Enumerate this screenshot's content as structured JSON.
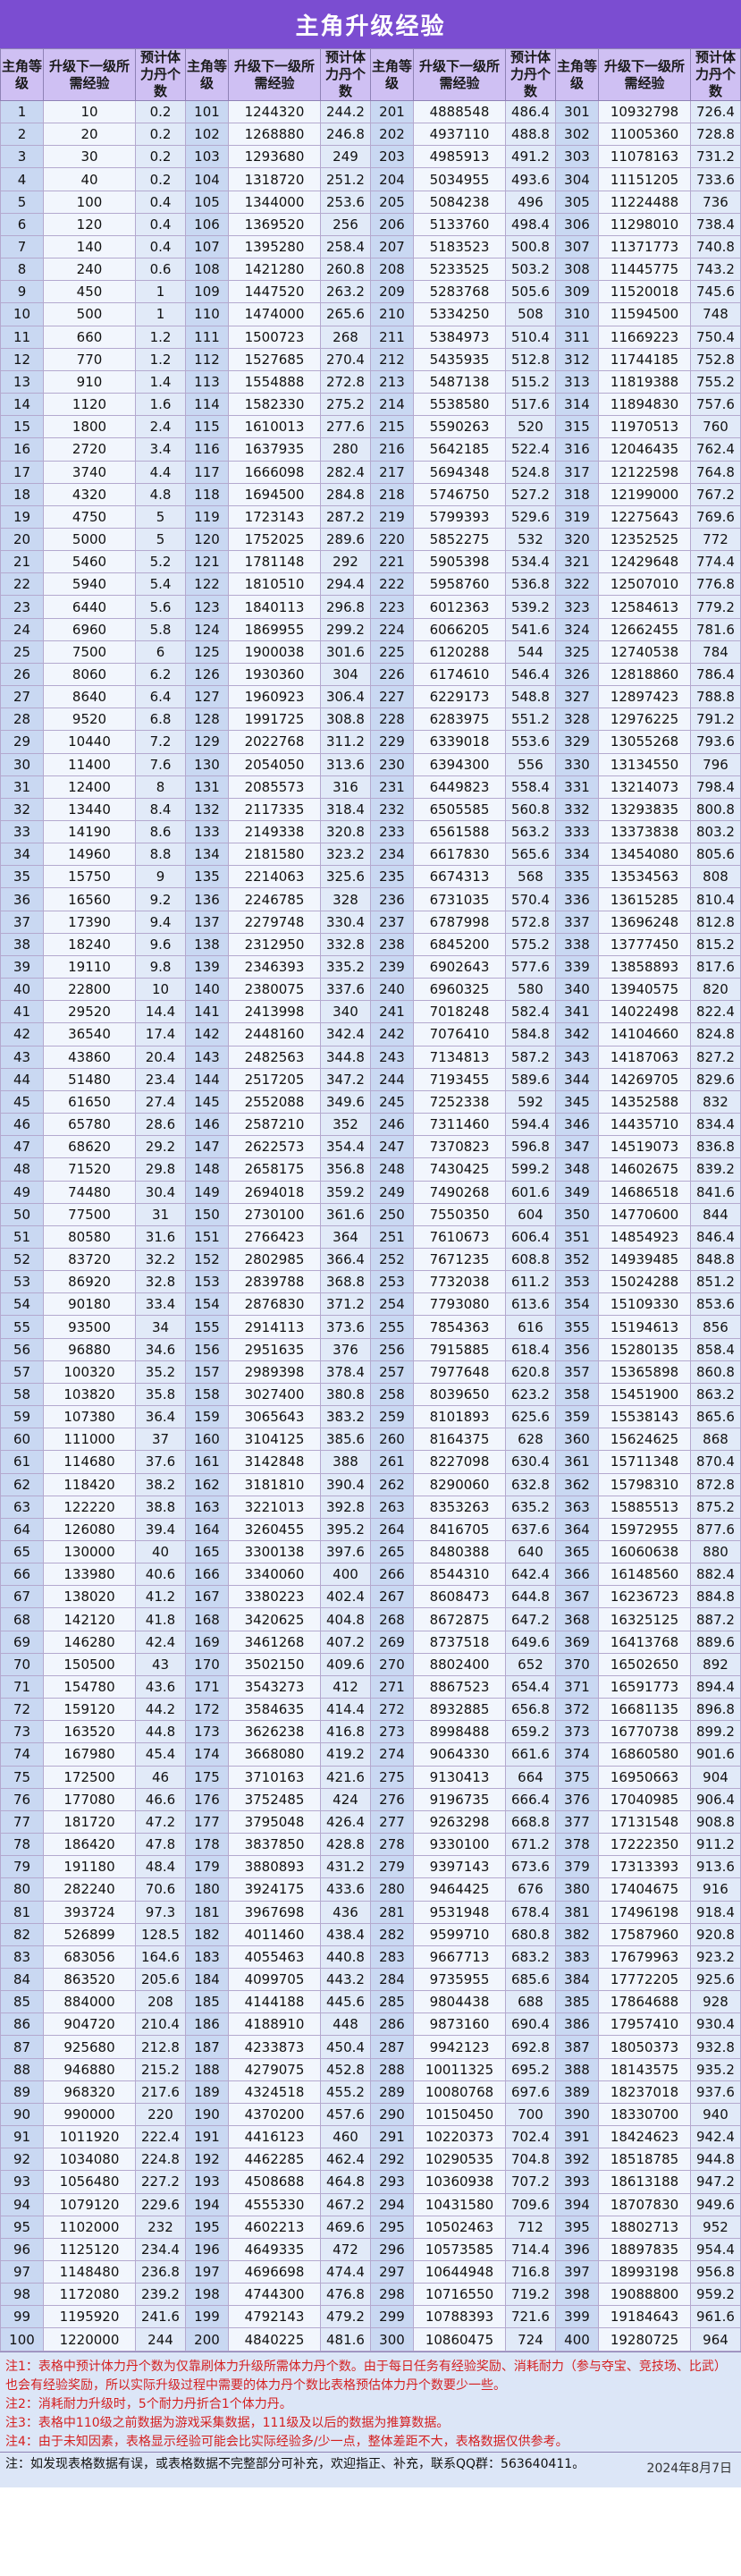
{
  "title": "主角升级经验",
  "header": {
    "level": "主角等级",
    "exp": "升级下一级所需经验",
    "stamina": "预计体力丹个数"
  },
  "groups": [
    {
      "start": 1,
      "exp": [
        "10",
        "20",
        "30",
        "40",
        "100",
        "120",
        "140",
        "240",
        "450",
        "500",
        "660",
        "770",
        "910",
        "1120",
        "1800",
        "2720",
        "3740",
        "4320",
        "4750",
        "5000",
        "5460",
        "5940",
        "6440",
        "6960",
        "7500",
        "8060",
        "8640",
        "9520",
        "10440",
        "11400",
        "12400",
        "13440",
        "14190",
        "14960",
        "15750",
        "16560",
        "17390",
        "18240",
        "19110",
        "22800",
        "29520",
        "36540",
        "43860",
        "51480",
        "61650",
        "65780",
        "68620",
        "71520",
        "74480",
        "77500",
        "80580",
        "83720",
        "86920",
        "90180",
        "93500",
        "96880",
        "100320",
        "103820",
        "107380",
        "111000",
        "114680",
        "118420",
        "122220",
        "126080",
        "130000",
        "133980",
        "138020",
        "142120",
        "146280",
        "150500",
        "154780",
        "159120",
        "163520",
        "167980",
        "172500",
        "177080",
        "181720",
        "186420",
        "191180",
        "282240",
        "393724",
        "526899",
        "683056",
        "863520",
        "884000",
        "904720",
        "925680",
        "946880",
        "968320",
        "990000",
        "1011920",
        "1034080",
        "1056480",
        "1079120",
        "1102000",
        "1125120",
        "1148480",
        "1172080",
        "1195920",
        "1220000"
      ],
      "stamina": [
        "0.2",
        "0.2",
        "0.2",
        "0.2",
        "0.4",
        "0.4",
        "0.4",
        "0.6",
        "1",
        "1",
        "1.2",
        "1.2",
        "1.4",
        "1.6",
        "2.4",
        "3.4",
        "4.4",
        "4.8",
        "5",
        "5",
        "5.2",
        "5.4",
        "5.6",
        "5.8",
        "6",
        "6.2",
        "6.4",
        "6.8",
        "7.2",
        "7.6",
        "8",
        "8.4",
        "8.6",
        "8.8",
        "9",
        "9.2",
        "9.4",
        "9.6",
        "9.8",
        "10",
        "14.4",
        "17.4",
        "20.4",
        "23.4",
        "27.4",
        "28.6",
        "29.2",
        "29.8",
        "30.4",
        "31",
        "31.6",
        "32.2",
        "32.8",
        "33.4",
        "34",
        "34.6",
        "35.2",
        "35.8",
        "36.4",
        "37",
        "37.6",
        "38.2",
        "38.8",
        "39.4",
        "40",
        "40.6",
        "41.2",
        "41.8",
        "42.4",
        "43",
        "43.6",
        "44.2",
        "44.8",
        "45.4",
        "46",
        "46.6",
        "47.2",
        "47.8",
        "48.4",
        "70.6",
        "97.3",
        "128.5",
        "164.6",
        "205.6",
        "208",
        "210.4",
        "212.8",
        "215.2",
        "217.6",
        "220",
        "222.4",
        "224.8",
        "227.2",
        "229.6",
        "232",
        "234.4",
        "236.8",
        "239.2",
        "241.6",
        "244"
      ]
    },
    {
      "start": 101,
      "exp": [
        "1244320",
        "1268880",
        "1293680",
        "1318720",
        "1344000",
        "1369520",
        "1395280",
        "1421280",
        "1447520",
        "1474000",
        "1500723",
        "1527685",
        "1554888",
        "1582330",
        "1610013",
        "1637935",
        "1666098",
        "1694500",
        "1723143",
        "1752025",
        "1781148",
        "1810510",
        "1840113",
        "1869955",
        "1900038",
        "1930360",
        "1960923",
        "1991725",
        "2022768",
        "2054050",
        "2085573",
        "2117335",
        "2149338",
        "2181580",
        "2214063",
        "2246785",
        "2279748",
        "2312950",
        "2346393",
        "2380075",
        "2413998",
        "2448160",
        "2482563",
        "2517205",
        "2552088",
        "2587210",
        "2622573",
        "2658175",
        "2694018",
        "2730100",
        "2766423",
        "2802985",
        "2839788",
        "2876830",
        "2914113",
        "2951635",
        "2989398",
        "3027400",
        "3065643",
        "3104125",
        "3142848",
        "3181810",
        "3221013",
        "3260455",
        "3300138",
        "3340060",
        "3380223",
        "3420625",
        "3461268",
        "3502150",
        "3543273",
        "3584635",
        "3626238",
        "3668080",
        "3710163",
        "3752485",
        "3795048",
        "3837850",
        "3880893",
        "3924175",
        "3967698",
        "4011460",
        "4055463",
        "4099705",
        "4144188",
        "4188910",
        "4233873",
        "4279075",
        "4324518",
        "4370200",
        "4416123",
        "4462285",
        "4508688",
        "4555330",
        "4602213",
        "4649335",
        "4696698",
        "4744300",
        "4792143",
        "4840225"
      ],
      "stamina": [
        "244.2",
        "246.8",
        "249",
        "251.2",
        "253.6",
        "256",
        "258.4",
        "260.8",
        "263.2",
        "265.6",
        "268",
        "270.4",
        "272.8",
        "275.2",
        "277.6",
        "280",
        "282.4",
        "284.8",
        "287.2",
        "289.6",
        "292",
        "294.4",
        "296.8",
        "299.2",
        "301.6",
        "304",
        "306.4",
        "308.8",
        "311.2",
        "313.6",
        "316",
        "318.4",
        "320.8",
        "323.2",
        "325.6",
        "328",
        "330.4",
        "332.8",
        "335.2",
        "337.6",
        "340",
        "342.4",
        "344.8",
        "347.2",
        "349.6",
        "352",
        "354.4",
        "356.8",
        "359.2",
        "361.6",
        "364",
        "366.4",
        "368.8",
        "371.2",
        "373.6",
        "376",
        "378.4",
        "380.8",
        "383.2",
        "385.6",
        "388",
        "390.4",
        "392.8",
        "395.2",
        "397.6",
        "400",
        "402.4",
        "404.8",
        "407.2",
        "409.6",
        "412",
        "414.4",
        "416.8",
        "419.2",
        "421.6",
        "424",
        "426.4",
        "428.8",
        "431.2",
        "433.6",
        "436",
        "438.4",
        "440.8",
        "443.2",
        "445.6",
        "448",
        "450.4",
        "452.8",
        "455.2",
        "457.6",
        "460",
        "462.4",
        "464.8",
        "467.2",
        "469.6",
        "472",
        "474.4",
        "476.8",
        "479.2",
        "481.6"
      ]
    },
    {
      "start": 201,
      "exp": [
        "4888548",
        "4937110",
        "4985913",
        "5034955",
        "5084238",
        "5133760",
        "5183523",
        "5233525",
        "5283768",
        "5334250",
        "5384973",
        "5435935",
        "5487138",
        "5538580",
        "5590263",
        "5642185",
        "5694348",
        "5746750",
        "5799393",
        "5852275",
        "5905398",
        "5958760",
        "6012363",
        "6066205",
        "6120288",
        "6174610",
        "6229173",
        "6283975",
        "6339018",
        "6394300",
        "6449823",
        "6505585",
        "6561588",
        "6617830",
        "6674313",
        "6731035",
        "6787998",
        "6845200",
        "6902643",
        "6960325",
        "7018248",
        "7076410",
        "7134813",
        "7193455",
        "7252338",
        "7311460",
        "7370823",
        "7430425",
        "7490268",
        "7550350",
        "7610673",
        "7671235",
        "7732038",
        "7793080",
        "7854363",
        "7915885",
        "7977648",
        "8039650",
        "8101893",
        "8164375",
        "8227098",
        "8290060",
        "8353263",
        "8416705",
        "8480388",
        "8544310",
        "8608473",
        "8672875",
        "8737518",
        "8802400",
        "8867523",
        "8932885",
        "8998488",
        "9064330",
        "9130413",
        "9196735",
        "9263298",
        "9330100",
        "9397143",
        "9464425",
        "9531948",
        "9599710",
        "9667713",
        "9735955",
        "9804438",
        "9873160",
        "9942123",
        "10011325",
        "10080768",
        "10150450",
        "10220373",
        "10290535",
        "10360938",
        "10431580",
        "10502463",
        "10573585",
        "10644948",
        "10716550",
        "10788393",
        "10860475"
      ],
      "stamina": [
        "486.4",
        "488.8",
        "491.2",
        "493.6",
        "496",
        "498.4",
        "500.8",
        "503.2",
        "505.6",
        "508",
        "510.4",
        "512.8",
        "515.2",
        "517.6",
        "520",
        "522.4",
        "524.8",
        "527.2",
        "529.6",
        "532",
        "534.4",
        "536.8",
        "539.2",
        "541.6",
        "544",
        "546.4",
        "548.8",
        "551.2",
        "553.6",
        "556",
        "558.4",
        "560.8",
        "563.2",
        "565.6",
        "568",
        "570.4",
        "572.8",
        "575.2",
        "577.6",
        "580",
        "582.4",
        "584.8",
        "587.2",
        "589.6",
        "592",
        "594.4",
        "596.8",
        "599.2",
        "601.6",
        "604",
        "606.4",
        "608.8",
        "611.2",
        "613.6",
        "616",
        "618.4",
        "620.8",
        "623.2",
        "625.6",
        "628",
        "630.4",
        "632.8",
        "635.2",
        "637.6",
        "640",
        "642.4",
        "644.8",
        "647.2",
        "649.6",
        "652",
        "654.4",
        "656.8",
        "659.2",
        "661.6",
        "664",
        "666.4",
        "668.8",
        "671.2",
        "673.6",
        "676",
        "678.4",
        "680.8",
        "683.2",
        "685.6",
        "688",
        "690.4",
        "692.8",
        "695.2",
        "697.6",
        "700",
        "702.4",
        "704.8",
        "707.2",
        "709.6",
        "712",
        "714.4",
        "716.8",
        "719.2",
        "721.6",
        "724"
      ]
    },
    {
      "start": 301,
      "exp": [
        "10932798",
        "11005360",
        "11078163",
        "11151205",
        "11224488",
        "11298010",
        "11371773",
        "11445775",
        "11520018",
        "11594500",
        "11669223",
        "11744185",
        "11819388",
        "11894830",
        "11970513",
        "12046435",
        "12122598",
        "12199000",
        "12275643",
        "12352525",
        "12429648",
        "12507010",
        "12584613",
        "12662455",
        "12740538",
        "12818860",
        "12897423",
        "12976225",
        "13055268",
        "13134550",
        "13214073",
        "13293835",
        "13373838",
        "13454080",
        "13534563",
        "13615285",
        "13696248",
        "13777450",
        "13858893",
        "13940575",
        "14022498",
        "14104660",
        "14187063",
        "14269705",
        "14352588",
        "14435710",
        "14519073",
        "14602675",
        "14686518",
        "14770600",
        "14854923",
        "14939485",
        "15024288",
        "15109330",
        "15194613",
        "15280135",
        "15365898",
        "15451900",
        "15538143",
        "15624625",
        "15711348",
        "15798310",
        "15885513",
        "15972955",
        "16060638",
        "16148560",
        "16236723",
        "16325125",
        "16413768",
        "16502650",
        "16591773",
        "16681135",
        "16770738",
        "16860580",
        "16950663",
        "17040985",
        "17131548",
        "17222350",
        "17313393",
        "17404675",
        "17496198",
        "17587960",
        "17679963",
        "17772205",
        "17864688",
        "17957410",
        "18050373",
        "18143575",
        "18237018",
        "18330700",
        "18424623",
        "18518785",
        "18613188",
        "18707830",
        "18802713",
        "18897835",
        "18993198",
        "19088800",
        "19184643",
        "19280725"
      ],
      "stamina": [
        "726.4",
        "728.8",
        "731.2",
        "733.6",
        "736",
        "738.4",
        "740.8",
        "743.2",
        "745.6",
        "748",
        "750.4",
        "752.8",
        "755.2",
        "757.6",
        "760",
        "762.4",
        "764.8",
        "767.2",
        "769.6",
        "772",
        "774.4",
        "776.8",
        "779.2",
        "781.6",
        "784",
        "786.4",
        "788.8",
        "791.2",
        "793.6",
        "796",
        "798.4",
        "800.8",
        "803.2",
        "805.6",
        "808",
        "810.4",
        "812.8",
        "815.2",
        "817.6",
        "820",
        "822.4",
        "824.8",
        "827.2",
        "829.6",
        "832",
        "834.4",
        "836.8",
        "839.2",
        "841.6",
        "844",
        "846.4",
        "848.8",
        "851.2",
        "853.6",
        "856",
        "858.4",
        "860.8",
        "863.2",
        "865.6",
        "868",
        "870.4",
        "872.8",
        "875.2",
        "877.6",
        "880",
        "882.4",
        "884.8",
        "887.2",
        "889.6",
        "892",
        "894.4",
        "896.8",
        "899.2",
        "901.6",
        "904",
        "906.4",
        "908.8",
        "911.2",
        "913.6",
        "916",
        "918.4",
        "920.8",
        "923.2",
        "925.6",
        "928",
        "930.4",
        "932.8",
        "935.2",
        "937.6",
        "940",
        "942.4",
        "944.8",
        "947.2",
        "949.6",
        "952",
        "954.4",
        "956.8",
        "959.2",
        "961.6",
        "964"
      ]
    }
  ],
  "notes": [
    "注1：表格中预计体力丹个数为仅靠刷体力升级所需体力丹个数。由于每日任务有经验奖励、消耗耐力（参与夺宝、竞技场、比武）也会有经验奖励，所以实际升级过程中需要的体力丹个数比表格预估体力丹个数要少一些。",
    "注2：消耗耐力升级时，5个耐力丹折合1个体力丹。",
    "注3：表格中110级之前数据为游戏采集数据，111级及以后的数据为推算数据。",
    "注4：由于未知因素，表格显示经验可能会比实际经验多/少一点，整体差距不大，表格数据仅供参考。"
  ],
  "footer": {
    "text": "注：如发现表格数据有误，或表格数据不完整部分可补充，欢迎指正、补充，联系QQ群：563640411。",
    "date": "2024年8月7日"
  }
}
